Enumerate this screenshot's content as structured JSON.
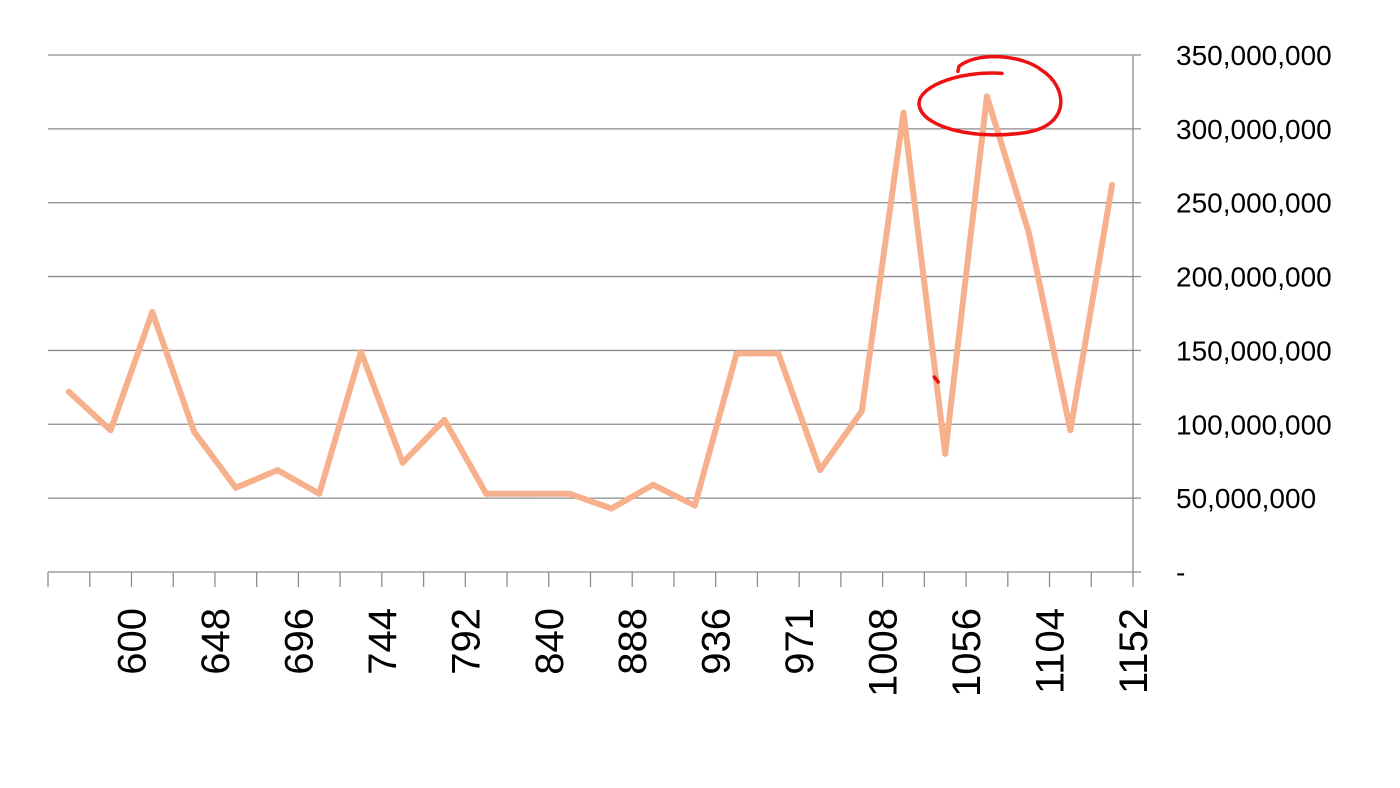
{
  "chart_data": {
    "type": "line",
    "title": "",
    "xlabel": "",
    "ylabel": "",
    "x_tick_labels": [
      "600",
      "648",
      "696",
      "744",
      "792",
      "840",
      "888",
      "936",
      "971",
      "1008",
      "1056",
      "1104",
      "1152"
    ],
    "series": [
      {
        "color": "#f6b08c",
        "values": [
          122000000,
          96000000,
          176000000,
          95000000,
          57000000,
          69000000,
          53000000,
          149000000,
          74000000,
          103000000,
          53000000,
          53000000,
          53000000,
          43000000,
          59000000,
          45000000,
          148000000,
          148000000,
          69000000,
          109000000,
          311000000,
          80000000,
          322000000,
          230000000,
          96000000,
          262000000
        ]
      }
    ],
    "ylim": [
      0,
      350000000
    ],
    "y_ticks": [
      0,
      50000000,
      100000000,
      150000000,
      200000000,
      250000000,
      300000000,
      350000000
    ],
    "y_tick_labels": [
      "-",
      "50,000,000",
      "100,000,000",
      "150,000,000",
      "200,000,000",
      "250,000,000",
      "300,000,000",
      "350,000,000"
    ],
    "y_axis_side": "right",
    "grid": true,
    "legend": "none",
    "annotation": {
      "kind": "hand-drawn circle",
      "color": "#ee1111",
      "target_point_index": 22
    }
  }
}
